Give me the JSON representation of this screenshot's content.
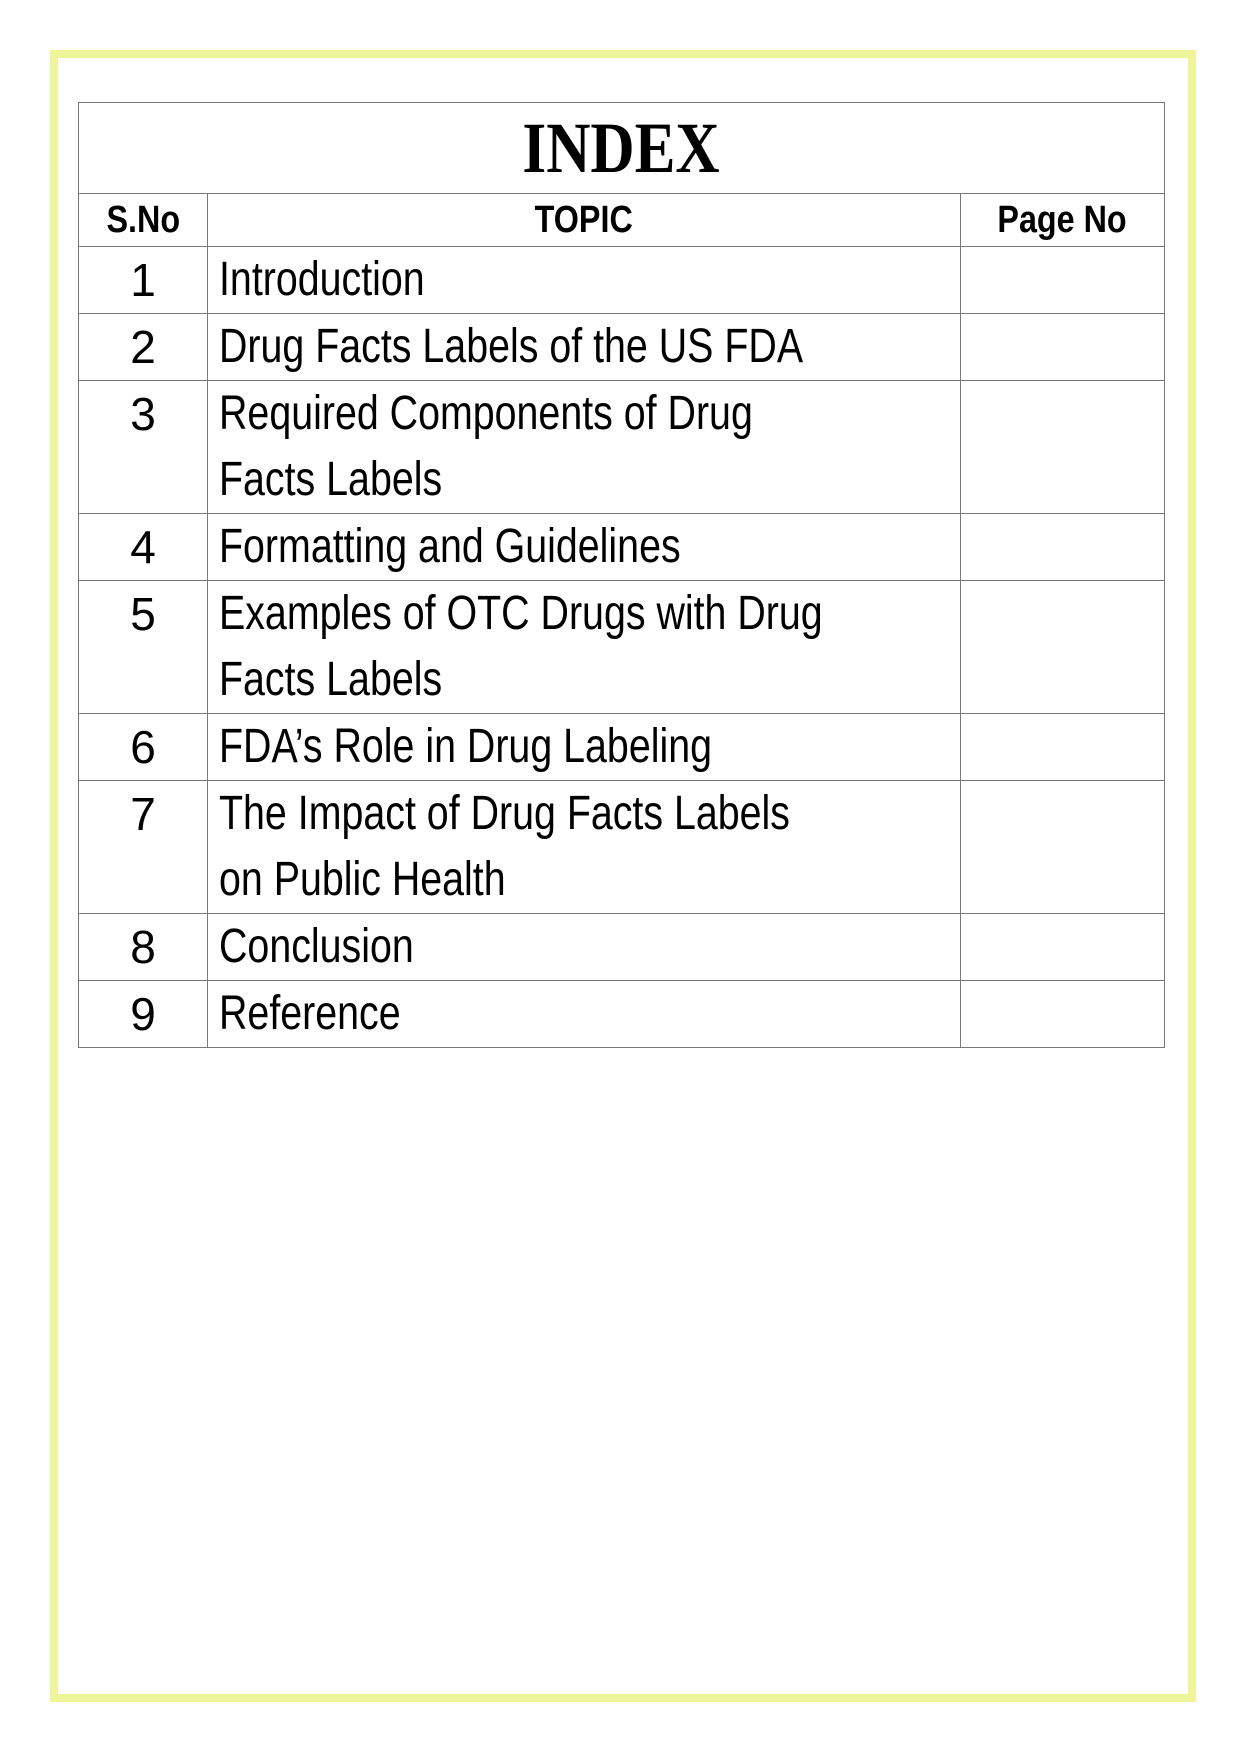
{
  "frame_color": "#eef59a",
  "title": "INDEX",
  "headers": {
    "sno": "S.No",
    "topic": "TOPIC",
    "page": "Page No"
  },
  "rows": [
    {
      "sno": "1",
      "lines": [
        "Introduction"
      ],
      "page": ""
    },
    {
      "sno": "2",
      "lines": [
        "Drug Facts Labels of the US FDA"
      ],
      "page": ""
    },
    {
      "sno": "3",
      "lines": [
        "Required Components of Drug",
        "Facts Labels"
      ],
      "page": ""
    },
    {
      "sno": "4",
      "lines": [
        "Formatting and Guidelines"
      ],
      "page": ""
    },
    {
      "sno": "5",
      "lines": [
        "Examples of OTC Drugs with Drug",
        "Facts Labels"
      ],
      "page": ""
    },
    {
      "sno": "6",
      "lines": [
        "FDA’s Role in Drug Labeling"
      ],
      "page": ""
    },
    {
      "sno": "7",
      "lines": [
        "The Impact of Drug Facts Labels",
        "on Public Health"
      ],
      "page": ""
    },
    {
      "sno": "8",
      "lines": [
        "Conclusion"
      ],
      "page": ""
    },
    {
      "sno": "9",
      "lines": [
        "Reference"
      ],
      "page": ""
    }
  ]
}
